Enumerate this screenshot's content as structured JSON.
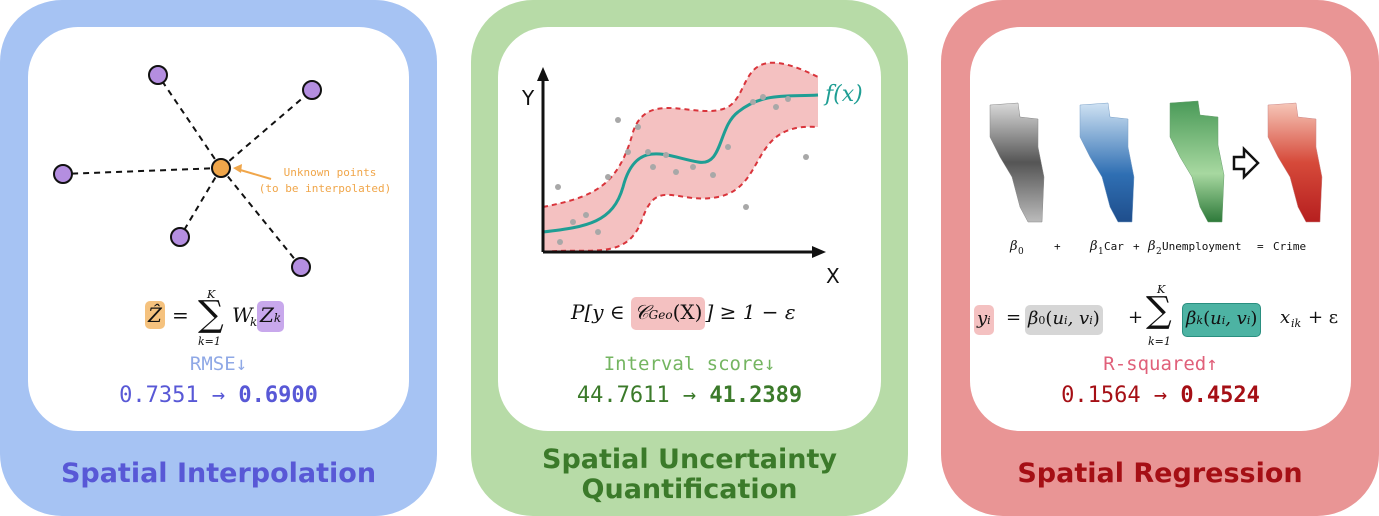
{
  "colors": {
    "panel1": "#a6c3f3",
    "panel2": "#b7dba7",
    "panel3": "#e99595",
    "blue_title": "#5858d6",
    "green_title": "#3b7a2a",
    "red_title": "#a50f15",
    "metric1": "#8fa8e6",
    "metric2": "#74b561",
    "metric3": "#e0607a",
    "orange": "#f0a64a",
    "purple": "#b48ee0",
    "teal": "#1f9e94",
    "pink_band": "#f4c1c1",
    "dash_red": "#d9343b"
  },
  "panels": [
    {
      "title": "Spatial Interpolation",
      "annotation_line1": "Unknown points",
      "annotation_line2": "(to be interpolated)",
      "formula": {
        "lhs": "Ẑ",
        "eq": "=",
        "sum_top": "K",
        "sum_bottom": "k=1",
        "w": "W",
        "w_sub": "k",
        "z": "Z",
        "z_sub": "k"
      },
      "metric_name": "RMSE↓",
      "before": "0.7351",
      "arrow": "→",
      "after": "0.6900"
    },
    {
      "title_line1": "Spatial Uncertainty",
      "title_line2": "Quantification",
      "axis_y": "Y",
      "axis_x": "X",
      "curve_label": "f(x)",
      "formula": {
        "p": "P[y ∈ ",
        "c": "𝒞",
        "c_sub": "Geo",
        "c_arg": "(X)",
        "rhs": "] ≥ 1 − ε"
      },
      "metric_name": "Interval score↓",
      "before": "44.7611",
      "arrow": "→",
      "after": "41.2389"
    },
    {
      "title": "Spatial Regression",
      "equation_row": {
        "b0": "β",
        "b0_sub": "0",
        "plus1": "+",
        "b1": "β",
        "b1_sub": "1",
        "car": "Car",
        "plus2": "+",
        "b2": "β",
        "b2_sub": "2",
        "unemp": "Unemployment",
        "eq": "=",
        "crime": "Crime"
      },
      "formula": {
        "y": "y",
        "y_sub": "i",
        "eq": "=",
        "b0": "β",
        "b0_sub": "0",
        "b0_arg": "(u",
        "i1": "i",
        ",": ", v",
        "i2": "i",
        ")": ")",
        "plus": "+",
        "sum_top": "K",
        "sum_bottom": "k=1",
        "bk": "β",
        "bk_sub": "k",
        "bk_arg": "(u",
        "x": "x",
        "x_sub": "ik",
        "tail": "+ ε"
      },
      "metric_name": "R-squared↑",
      "before": "0.1564",
      "arrow": "→",
      "after": "0.4524"
    }
  ]
}
